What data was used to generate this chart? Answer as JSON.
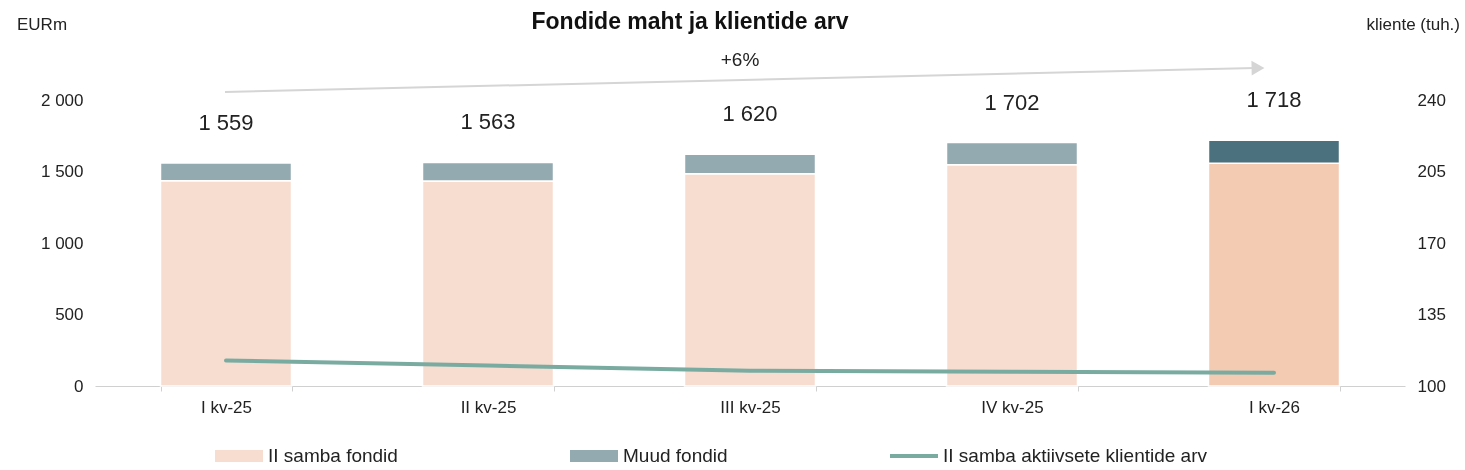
{
  "chart_data": {
    "type": "bar",
    "title": "Fondide maht ja klientide arv",
    "ylabel": "EURm",
    "y2label": "kliente (tuh.)",
    "categories": [
      "I kv-25",
      "II kv-25",
      "III kv-25",
      "IV kv-25",
      "I kv-26"
    ],
    "stacked": true,
    "series": [
      {
        "name": "II samba fondid",
        "color": "#f7ddd0",
        "colors": [
          "#f7ddd0",
          "#f7ddd0",
          "#f7ddd0",
          "#f7ddd0",
          "#f3cab2"
        ],
        "values": [
          1435,
          1434,
          1484,
          1548,
          1557
        ]
      },
      {
        "name": "Muud fondid",
        "color": "#92aab0",
        "colors": [
          "#92aab0",
          "#92aab0",
          "#92aab0",
          "#92aab0",
          "#4a717d"
        ],
        "values": [
          124,
          129,
          136,
          154,
          161
        ]
      },
      {
        "name": "II samba aktiivsete klientide arv",
        "type": "line",
        "axis": "y2",
        "color": "#7aaba1",
        "values": [
          112.5,
          110.0,
          107.5,
          107.0,
          106.5
        ]
      }
    ],
    "totals": [
      "1 559",
      "1 563",
      "1 620",
      "1 702",
      "1 718"
    ],
    "ylim": [
      0,
      2000
    ],
    "yticks": [
      {
        "value": 0,
        "label": "0"
      },
      {
        "value": 500,
        "label": "500"
      },
      {
        "value": 1000,
        "label": "1 000"
      },
      {
        "value": 1500,
        "label": "1 500"
      },
      {
        "value": 2000,
        "label": "2 000"
      }
    ],
    "y2lim": [
      100,
      240
    ],
    "y2ticks": [
      100,
      135,
      170,
      205,
      240
    ],
    "annotations": [
      "+6%"
    ],
    "grid": false,
    "legend": "bottom",
    "marker": "none",
    "line_style": "solid"
  }
}
